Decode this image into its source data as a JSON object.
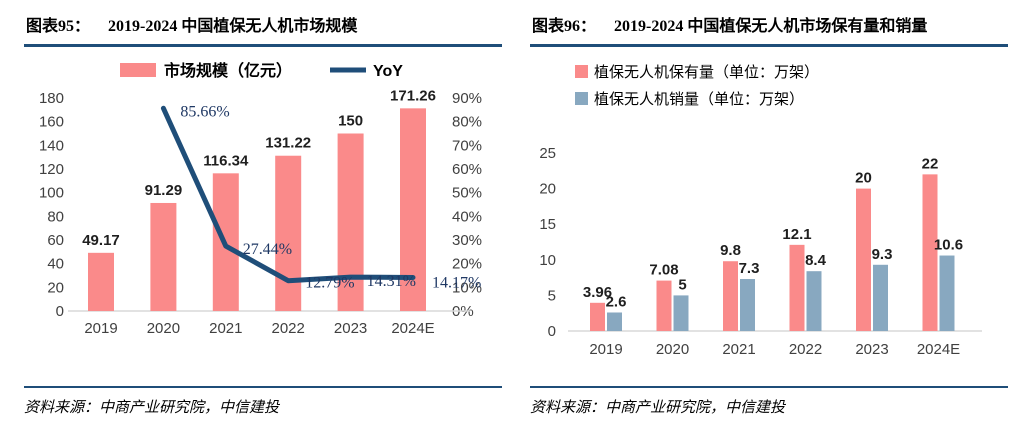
{
  "page": {
    "background": "#FFFFFF",
    "rule_color": "#1F4E79"
  },
  "panels": [
    {
      "figure_label": "图表95：",
      "title": "2019-2024 中国植保无人机市场规模",
      "source": "资料来源：中商产业研究院，中信建投"
    },
    {
      "figure_label": "图表96：",
      "title": "2019-2024 中国植保无人机市场保有量和销量",
      "source": "资料来源：中商产业研究院，中信建投"
    }
  ],
  "chart_data": [
    {
      "type": "bar",
      "subtype": "bar+line combo, dual axis",
      "title": "2019-2024 中国植保无人机市场规模",
      "categories": [
        "2019",
        "2020",
        "2021",
        "2022",
        "2023",
        "2024E"
      ],
      "series": [
        {
          "name": "市场规模（亿元）",
          "type": "bar",
          "axis": "left",
          "color": "#FA8A8A",
          "values": [
            49.17,
            91.29,
            116.34,
            131.22,
            150,
            171.26
          ],
          "labels": [
            "49.17",
            "91.29",
            "116.34",
            "131.22",
            "150",
            "171.26"
          ]
        },
        {
          "name": "YoY",
          "type": "line",
          "axis": "right",
          "color": "#1F4E79",
          "values": [
            null,
            85.66,
            27.44,
            12.79,
            14.31,
            14.17
          ],
          "labels": [
            "",
            "85.66%",
            "27.44%",
            "12.79%",
            "14.31%",
            "14.17%"
          ]
        }
      ],
      "left_axis": {
        "min": 0,
        "max": 180,
        "step": 20,
        "ticks": [
          "180",
          "160",
          "140",
          "120",
          "100",
          "80",
          "60",
          "40",
          "20",
          "0"
        ]
      },
      "right_axis": {
        "min": 0,
        "max": 90,
        "step": 10,
        "ticks": [
          "90%",
          "80%",
          "70%",
          "60%",
          "50%",
          "40%",
          "30%",
          "20%",
          "10%",
          "0%"
        ]
      },
      "legend_position": "top",
      "grid": false
    },
    {
      "type": "bar",
      "subtype": "grouped bars",
      "title": "2019-2024 中国植保无人机市场保有量和销量",
      "categories": [
        "2019",
        "2020",
        "2021",
        "2022",
        "2023",
        "2024E"
      ],
      "series": [
        {
          "name": "植保无人机保有量（单位：万架）",
          "type": "bar",
          "color": "#FA8A8A",
          "values": [
            3.96,
            7.08,
            9.8,
            12.1,
            20,
            22
          ],
          "labels": [
            "3.96",
            "7.08",
            "9.8",
            "12.1",
            "20",
            "22"
          ]
        },
        {
          "name": "植保无人机销量（单位：万架）",
          "type": "bar",
          "color": "#88A8C0",
          "values": [
            2.6,
            5,
            7.3,
            8.4,
            9.3,
            10.6
          ],
          "labels": [
            "2.6",
            "5",
            "7.3",
            "8.4",
            "9.3",
            "10.6"
          ]
        }
      ],
      "y_axis": {
        "min": 0,
        "max": 25,
        "step": 5,
        "ticks": [
          "25",
          "20",
          "15",
          "10",
          "5",
          "0"
        ]
      },
      "legend_position": "top",
      "grid": false
    }
  ]
}
